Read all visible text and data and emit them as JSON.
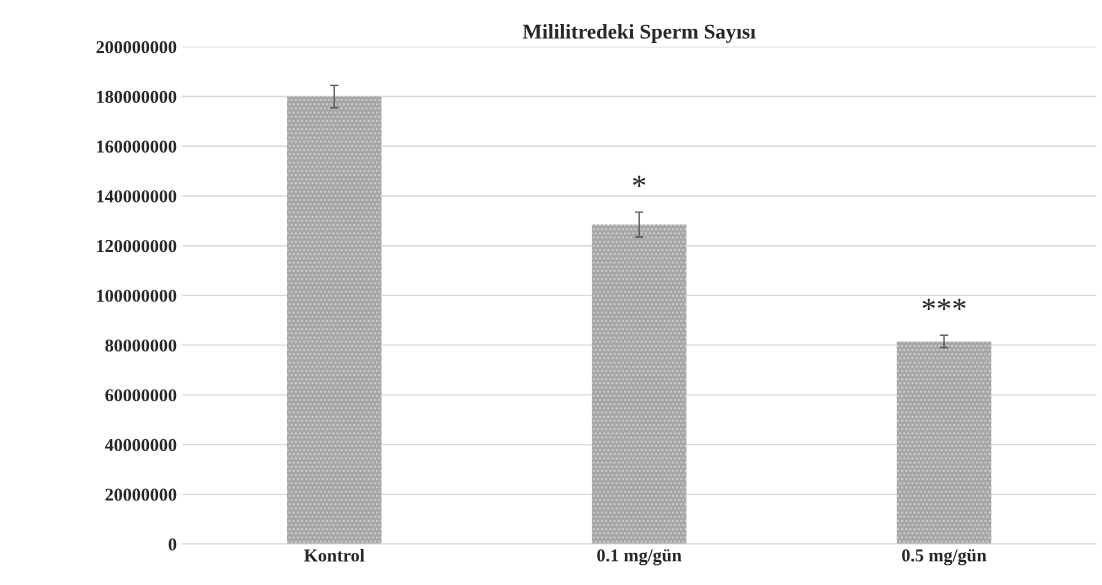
{
  "chart_data": {
    "type": "bar",
    "title": "Mililitredeki Sperm Sayısı",
    "categories": [
      "Kontrol",
      "0.1 mg/gün",
      "0.5 mg/gün"
    ],
    "values": [
      180000000,
      128500000,
      81500000
    ],
    "errors": [
      4500000,
      5000000,
      2500000
    ],
    "color": "#a6a6a6",
    "ylim": [
      0,
      200000000
    ],
    "yticks": [
      0,
      20000000,
      40000000,
      60000000,
      80000000,
      100000000,
      120000000,
      140000000,
      160000000,
      180000000,
      200000000
    ],
    "grid": "y",
    "annotations": [
      "*",
      "***"
    ]
  }
}
